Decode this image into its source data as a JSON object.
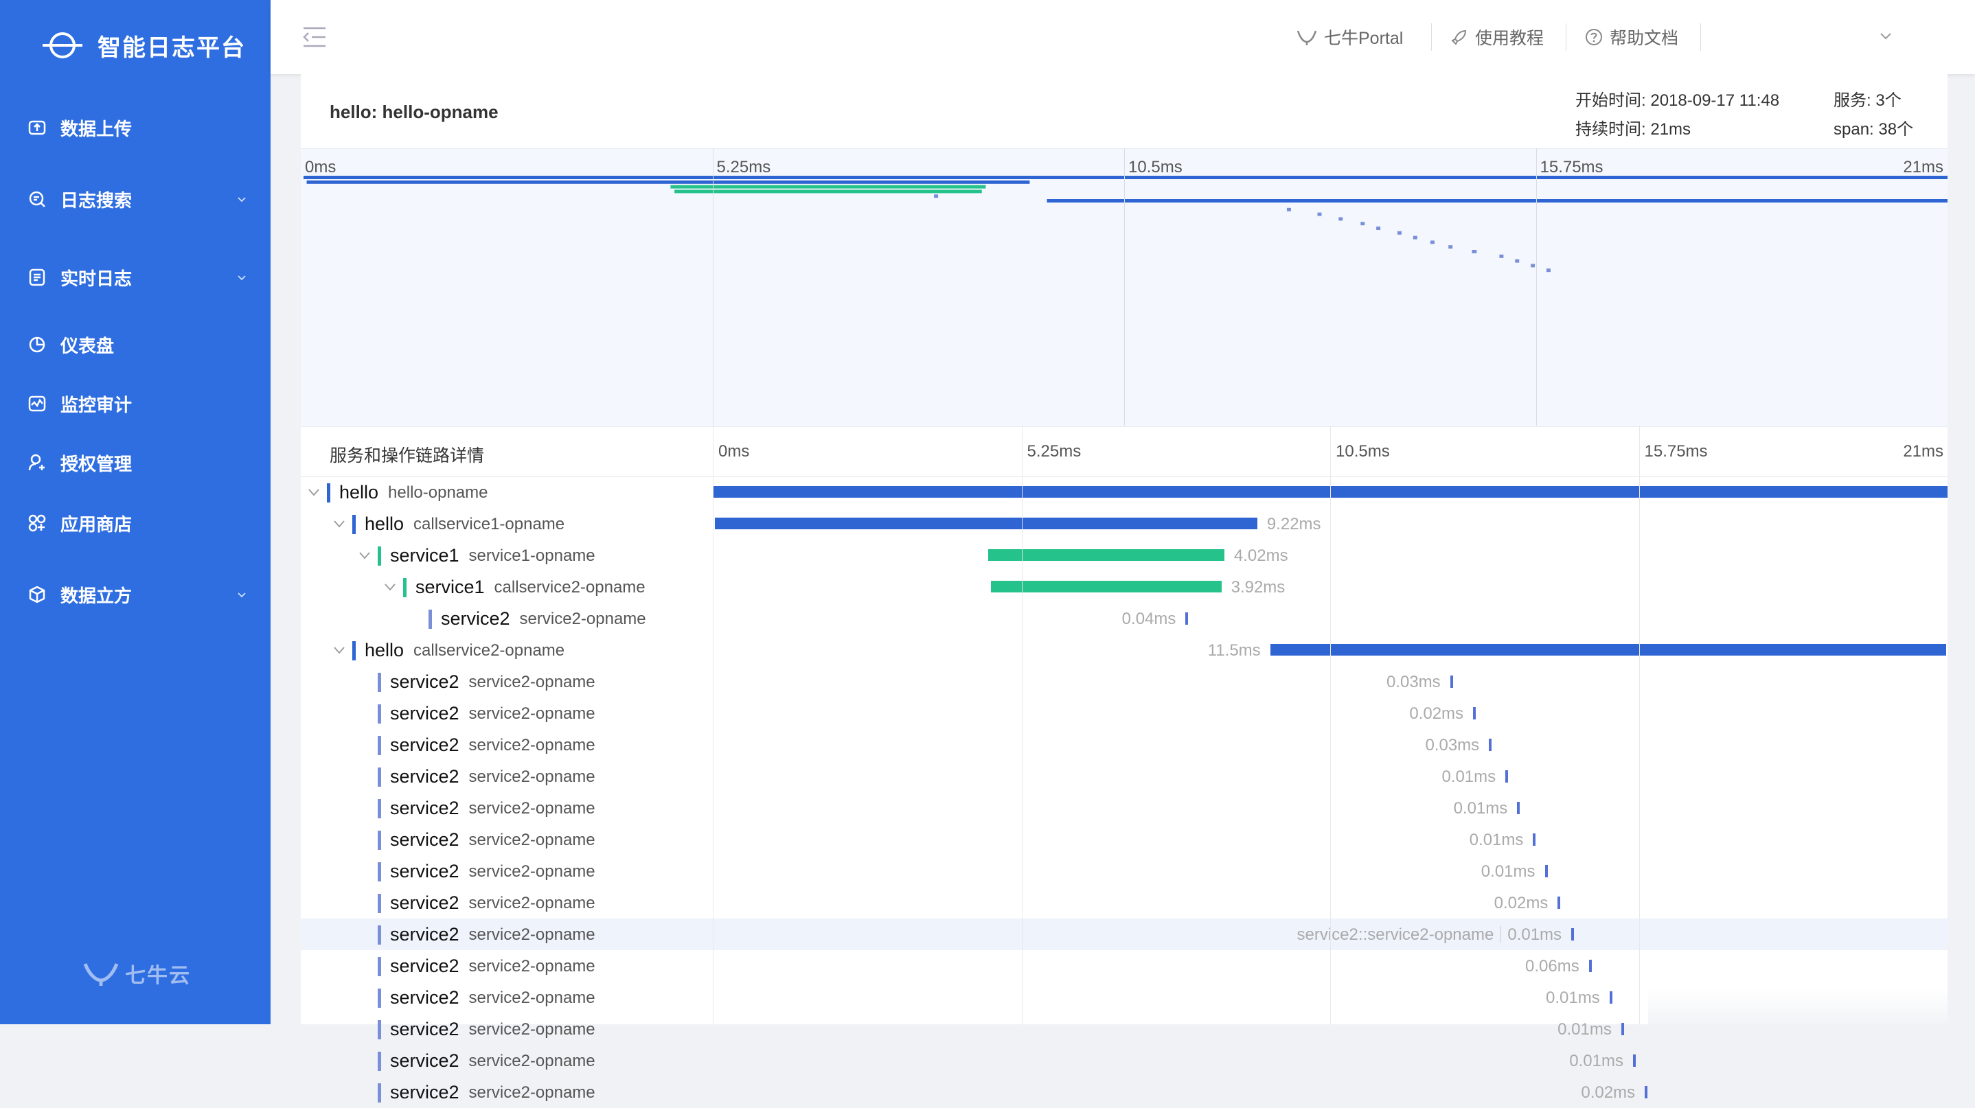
{
  "sidebar": {
    "brand": "智能日志平台",
    "items": [
      {
        "label": "数据上传",
        "icon": "upload-icon"
      },
      {
        "label": "日志搜索",
        "icon": "search-log-icon",
        "expandable": true
      },
      {
        "label": "实时日志",
        "icon": "realtime-log-icon",
        "expandable": true
      },
      {
        "label": "仪表盘",
        "icon": "dashboard-icon"
      },
      {
        "label": "监控审计",
        "icon": "monitor-icon"
      },
      {
        "label": "授权管理",
        "icon": "user-auth-icon"
      },
      {
        "label": "应用商店",
        "icon": "app-store-icon"
      },
      {
        "label": "数据立方",
        "icon": "data-cube-icon",
        "expandable": true
      }
    ],
    "footer_logo": "七牛云"
  },
  "header": {
    "links": [
      {
        "label": "七牛Portal",
        "icon": "qiniu-icon"
      },
      {
        "label": "使用教程",
        "icon": "rocket-icon"
      },
      {
        "label": "帮助文档",
        "icon": "question-icon"
      }
    ]
  },
  "trace": {
    "title": "hello: hello-opname",
    "start_time_label": "开始时间:",
    "start_time": "2018-09-17 11:48",
    "duration_label": "持续时间:",
    "duration": "21ms",
    "services_label": "服务:",
    "services": "3个",
    "span_label": "span:",
    "span_count": "38个"
  },
  "timeline": {
    "ticks": [
      "0ms",
      "5.25ms",
      "10.5ms",
      "15.75ms",
      "21ms"
    ],
    "total_ms": 21
  },
  "detail": {
    "title": "服务和操作链路详情",
    "hover_tooltip": "service2::service2-opname"
  },
  "colors": {
    "sidebar": "#2f6ee0",
    "hello": "#2f64d3",
    "service1": "#26c28b",
    "service2": "#7a8fd8",
    "tick_line": "#5470d6"
  },
  "spans": [
    {
      "service": "hello",
      "op": "hello-opname",
      "depth": 0,
      "expanded": true,
      "start_ms": 0,
      "dur_ms": 21,
      "duration": "",
      "color": "hello"
    },
    {
      "service": "hello",
      "op": "callservice1-opname",
      "depth": 1,
      "expanded": true,
      "start_ms": 0.04,
      "dur_ms": 9.22,
      "duration": "9.22ms",
      "color": "hello"
    },
    {
      "service": "service1",
      "op": "service1-opname",
      "depth": 2,
      "expanded": true,
      "start_ms": 4.68,
      "dur_ms": 4.02,
      "duration": "4.02ms",
      "color": "service1"
    },
    {
      "service": "service1",
      "op": "callservice2-opname",
      "depth": 3,
      "expanded": true,
      "start_ms": 4.73,
      "dur_ms": 3.92,
      "duration": "3.92ms",
      "color": "service1"
    },
    {
      "service": "service2",
      "op": "service2-opname",
      "depth": 4,
      "leaf": true,
      "start_ms": 8.04,
      "dur_ms": 0.04,
      "duration": "0.04ms",
      "color": "service2"
    },
    {
      "service": "hello",
      "op": "callservice2-opname",
      "depth": 1,
      "expanded": true,
      "start_ms": 9.48,
      "dur_ms": 11.5,
      "duration": "11.5ms",
      "color": "hello"
    },
    {
      "service": "service2",
      "op": "service2-opname",
      "depth": 2,
      "leaf": true,
      "start_ms": 12.54,
      "dur_ms": 0.03,
      "duration": "0.03ms",
      "color": "service2"
    },
    {
      "service": "service2",
      "op": "service2-opname",
      "depth": 2,
      "leaf": true,
      "start_ms": 12.93,
      "dur_ms": 0.02,
      "duration": "0.02ms",
      "color": "service2"
    },
    {
      "service": "service2",
      "op": "service2-opname",
      "depth": 2,
      "leaf": true,
      "start_ms": 13.2,
      "dur_ms": 0.03,
      "duration": "0.03ms",
      "color": "service2"
    },
    {
      "service": "service2",
      "op": "service2-opname",
      "depth": 2,
      "leaf": true,
      "start_ms": 13.48,
      "dur_ms": 0.01,
      "duration": "0.01ms",
      "color": "service2"
    },
    {
      "service": "service2",
      "op": "service2-opname",
      "depth": 2,
      "leaf": true,
      "start_ms": 13.68,
      "dur_ms": 0.01,
      "duration": "0.01ms",
      "color": "service2"
    },
    {
      "service": "service2",
      "op": "service2-opname",
      "depth": 2,
      "leaf": true,
      "start_ms": 13.95,
      "dur_ms": 0.01,
      "duration": "0.01ms",
      "color": "service2"
    },
    {
      "service": "service2",
      "op": "service2-opname",
      "depth": 2,
      "leaf": true,
      "start_ms": 14.15,
      "dur_ms": 0.01,
      "duration": "0.01ms",
      "color": "service2"
    },
    {
      "service": "service2",
      "op": "service2-opname",
      "depth": 2,
      "leaf": true,
      "start_ms": 14.37,
      "dur_ms": 0.02,
      "duration": "0.02ms",
      "color": "service2"
    },
    {
      "service": "service2",
      "op": "service2-opname",
      "depth": 2,
      "leaf": true,
      "start_ms": 14.6,
      "dur_ms": 0.01,
      "duration": "0.01ms",
      "color": "service2",
      "highlight": true
    },
    {
      "service": "service2",
      "op": "service2-opname",
      "depth": 2,
      "leaf": true,
      "start_ms": 14.9,
      "dur_ms": 0.06,
      "duration": "0.06ms",
      "color": "service2"
    },
    {
      "service": "service2",
      "op": "service2-opname",
      "depth": 2,
      "leaf": true,
      "start_ms": 15.25,
      "dur_ms": 0.01,
      "duration": "0.01ms",
      "color": "service2"
    },
    {
      "service": "service2",
      "op": "service2-opname",
      "depth": 2,
      "leaf": true,
      "start_ms": 15.45,
      "dur_ms": 0.01,
      "duration": "0.01ms",
      "color": "service2"
    },
    {
      "service": "service2",
      "op": "service2-opname",
      "depth": 2,
      "leaf": true,
      "start_ms": 15.65,
      "dur_ms": 0.01,
      "duration": "0.01ms",
      "color": "service2"
    },
    {
      "service": "service2",
      "op": "service2-opname",
      "depth": 2,
      "leaf": true,
      "start_ms": 15.85,
      "dur_ms": 0.02,
      "duration": "0.02ms",
      "color": "service2"
    }
  ]
}
